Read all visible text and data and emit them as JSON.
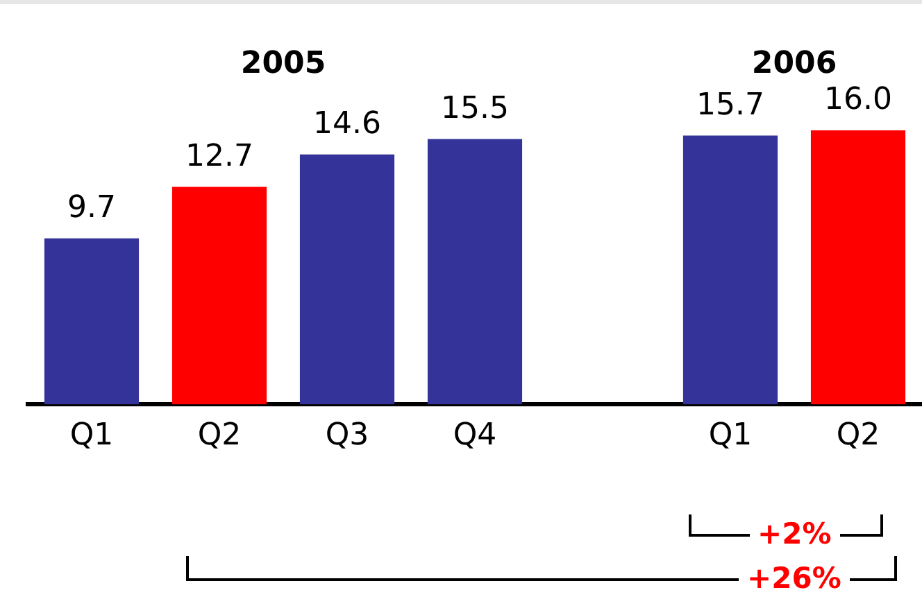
{
  "chart_data": {
    "type": "bar",
    "categories": [
      "Q1",
      "Q2",
      "Q3",
      "Q4",
      null,
      "Q1",
      "Q2"
    ],
    "values": [
      9.7,
      12.7,
      14.6,
      15.5,
      null,
      15.7,
      16.0
    ],
    "value_labels": [
      "9.7",
      "12.7",
      "14.6",
      "15.5",
      null,
      "15.7",
      "16.0"
    ],
    "colors": [
      "#333399",
      "#ff0000",
      "#333399",
      "#333399",
      "#333399",
      "#333399",
      "#ff0000"
    ],
    "tick_labels": "x",
    "grid": false,
    "legend": false,
    "annotations": [
      "2005",
      "2006",
      "+2%",
      "+26%"
    ]
  }
}
